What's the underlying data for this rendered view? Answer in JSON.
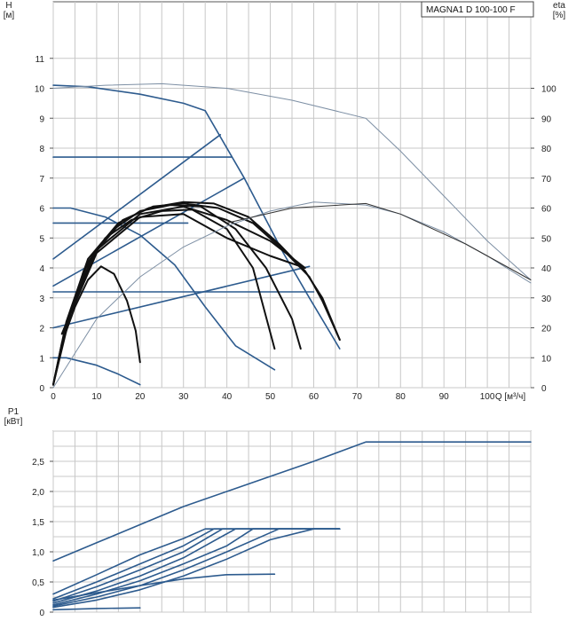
{
  "model_label": "MAGNA1 D 100-100 F",
  "colors": {
    "blue": "#2d5b8e",
    "black": "#111111",
    "eta": "#7d8fa4",
    "eta_black": "#333333",
    "grid": "#c8c8c8"
  },
  "chart_data": [
    {
      "type": "line",
      "title": "",
      "xlabel": "Q [м³/ч]",
      "ylabel": "H\n[м]",
      "y2label": "eta\n[%]",
      "xlim": [
        0,
        110
      ],
      "ylim": [
        0,
        12
      ],
      "y2lim": [
        0,
        120
      ],
      "grid": true,
      "x_ticks": [
        "0",
        "10",
        "20",
        "30",
        "40",
        "50",
        "60",
        "70",
        "80",
        "90",
        "100"
      ],
      "y_ticks": [
        "0",
        "1",
        "2",
        "3",
        "4",
        "5",
        "6",
        "7",
        "8",
        "9",
        "10",
        "11"
      ],
      "y2_ticks": [
        "0",
        "10",
        "20",
        "30",
        "40",
        "50",
        "60",
        "70",
        "80",
        "90",
        "100"
      ],
      "series": [
        {
          "color": "blue",
          "axis": "left",
          "points": [
            [
              0,
              10.1
            ],
            [
              8,
              10.05
            ],
            [
              20,
              9.8
            ],
            [
              30,
              9.5
            ],
            [
              35,
              9.25
            ]
          ]
        },
        {
          "color": "blue",
          "axis": "left",
          "points": [
            [
              35,
              9.25
            ],
            [
              44,
              7
            ],
            [
              53,
              4.5
            ],
            [
              59,
              3
            ],
            [
              66,
              1.3
            ]
          ]
        },
        {
          "color": "blue",
          "axis": "left",
          "points": [
            [
              0,
              7.7
            ],
            [
              41,
              7.7
            ]
          ]
        },
        {
          "color": "blue",
          "axis": "left",
          "points": [
            [
              0,
              5.5
            ],
            [
              31,
              5.5
            ]
          ]
        },
        {
          "color": "blue",
          "axis": "left",
          "points": [
            [
              0,
              3.2
            ],
            [
              60,
              3.2
            ]
          ]
        },
        {
          "color": "blue",
          "axis": "left",
          "points": [
            [
              0,
              4.3
            ],
            [
              38.5,
              8.45
            ]
          ]
        },
        {
          "color": "blue",
          "axis": "left",
          "points": [
            [
              0,
              3.4
            ],
            [
              44,
              7
            ]
          ]
        },
        {
          "color": "blue",
          "axis": "left",
          "points": [
            [
              0,
              2.0
            ],
            [
              59,
              4.05
            ]
          ]
        },
        {
          "color": "blue",
          "axis": "left",
          "points": [
            [
              0,
              6.0
            ],
            [
              4,
              6.0
            ],
            [
              12,
              5.7
            ],
            [
              20,
              5.1
            ],
            [
              28,
              4.1
            ],
            [
              35,
              2.7
            ],
            [
              42,
              1.4
            ],
            [
              51,
              0.6
            ]
          ]
        },
        {
          "color": "blue",
          "axis": "left",
          "points": [
            [
              0,
              1.0
            ],
            [
              3,
              1.0
            ],
            [
              10,
              0.75
            ],
            [
              15,
              0.45
            ],
            [
              20,
              0.1
            ]
          ]
        },
        {
          "color": "black",
          "axis": "left",
          "points": [
            [
              0,
              0.1
            ],
            [
              2,
              1.5
            ],
            [
              5,
              2.7
            ],
            [
              8,
              3.6
            ],
            [
              11,
              4.05
            ],
            [
              14,
              3.8
            ],
            [
              17,
              2.9
            ],
            [
              19,
              1.9
            ],
            [
              20,
              0.85
            ]
          ]
        },
        {
          "color": "black",
          "axis": "left",
          "points": [
            [
              0,
              0.1
            ],
            [
              3,
              2.0
            ],
            [
              7,
              3.9
            ],
            [
              12,
              5.0
            ],
            [
              18,
              5.6
            ],
            [
              25,
              5.9
            ],
            [
              32,
              5.95
            ],
            [
              40,
              5.3
            ],
            [
              46,
              4.0
            ],
            [
              51,
              1.3
            ]
          ]
        },
        {
          "color": "black",
          "axis": "left",
          "points": [
            [
              0,
              0.1
            ],
            [
              3,
              2.1
            ],
            [
              8,
              4.2
            ],
            [
              14,
              5.3
            ],
            [
              20,
              5.9
            ],
            [
              27,
              6.1
            ],
            [
              34,
              6.05
            ],
            [
              42,
              5.3
            ],
            [
              49,
              4.0
            ],
            [
              55,
              2.3
            ],
            [
              57,
              1.3
            ]
          ]
        },
        {
          "color": "black",
          "axis": "left",
          "points": [
            [
              0,
              0.1
            ],
            [
              3,
              2.2
            ],
            [
              8,
              4.3
            ],
            [
              15,
              5.5
            ],
            [
              22,
              6.0
            ],
            [
              30,
              6.2
            ],
            [
              37,
              6.15
            ],
            [
              45,
              5.7
            ],
            [
              52,
              4.8
            ],
            [
              58,
              3.9
            ],
            [
              62,
              3.0
            ],
            [
              66,
              1.6
            ]
          ]
        },
        {
          "color": "black",
          "axis": "left",
          "points": [
            [
              0,
              0.1
            ],
            [
              4,
              2.5
            ],
            [
              9,
              4.4
            ],
            [
              16,
              5.6
            ],
            [
              23,
              6.05
            ],
            [
              30,
              6.15
            ],
            [
              38,
              6.0
            ],
            [
              46,
              5.5
            ],
            [
              53,
              4.6
            ],
            [
              59,
              3.7
            ],
            [
              62,
              2.9
            ],
            [
              66,
              1.6
            ]
          ]
        },
        {
          "color": "black",
          "axis": "left",
          "points": [
            [
              2,
              1.8
            ],
            [
              10,
              4.5
            ],
            [
              20,
              5.7
            ],
            [
              30,
              5.8
            ],
            [
              40,
              5.0
            ],
            [
              50,
              4.4
            ],
            [
              58,
              4.0
            ]
          ]
        },
        {
          "color": "black",
          "axis": "left",
          "points": [
            [
              2,
              1.8
            ],
            [
              10,
              4.6
            ],
            [
              20,
              5.8
            ],
            [
              30,
              6.05
            ],
            [
              40,
              5.6
            ],
            [
              50,
              4.9
            ],
            [
              58,
              4.0
            ]
          ]
        },
        {
          "color": "eta",
          "axis": "right",
          "points": [
            [
              0,
              100
            ],
            [
              12,
              101
            ],
            [
              25,
              101.5
            ],
            [
              40,
              100
            ],
            [
              55,
              96
            ],
            [
              72,
              90
            ],
            [
              80,
              79
            ],
            [
              90,
              64
            ],
            [
              100,
              49
            ],
            [
              110,
              36
            ]
          ]
        },
        {
          "color": "eta",
          "axis": "right",
          "points": [
            [
              0,
              0
            ],
            [
              10,
              23
            ],
            [
              20,
              37
            ],
            [
              30,
              47
            ],
            [
              40,
              54
            ],
            [
              50,
              59
            ],
            [
              60,
              62
            ],
            [
              72,
              61
            ],
            [
              80,
              58
            ],
            [
              90,
              52
            ],
            [
              100,
              44
            ],
            [
              110,
              35
            ]
          ]
        },
        {
          "color": "eta_black",
          "axis": "right",
          "points": [
            [
              40,
              55
            ],
            [
              55,
              60
            ],
            [
              72,
              61.5
            ],
            [
              80,
              58
            ],
            [
              95,
              48
            ],
            [
              110,
              36
            ]
          ]
        }
      ]
    },
    {
      "type": "line",
      "title": "",
      "xlabel": "",
      "ylabel": "P1\n[кВт]",
      "xlim": [
        0,
        110
      ],
      "ylim": [
        0,
        3.0
      ],
      "grid": true,
      "y_ticks": [
        "0",
        "0,5",
        "1,0",
        "1,5",
        "2,0",
        "2,5"
      ],
      "series": [
        {
          "color": "blue",
          "axis": "left",
          "points": [
            [
              0,
              0.85
            ],
            [
              10,
              1.15
            ],
            [
              20,
              1.45
            ],
            [
              30,
              1.75
            ],
            [
              40,
              2.0
            ],
            [
              50,
              2.25
            ],
            [
              60,
              2.5
            ],
            [
              72,
              2.82
            ],
            [
              110,
              2.82
            ]
          ]
        },
        {
          "color": "blue",
          "axis": "left",
          "points": [
            [
              0,
              0.3
            ],
            [
              10,
              0.62
            ],
            [
              20,
              0.95
            ],
            [
              30,
              1.22
            ],
            [
              35,
              1.38
            ],
            [
              66,
              1.38
            ]
          ]
        },
        {
          "color": "blue",
          "axis": "left",
          "points": [
            [
              0,
              0.22
            ],
            [
              10,
              0.5
            ],
            [
              20,
              0.8
            ],
            [
              30,
              1.1
            ],
            [
              37,
              1.38
            ],
            [
              66,
              1.38
            ]
          ]
        },
        {
          "color": "blue",
          "axis": "left",
          "points": [
            [
              0,
              0.18
            ],
            [
              10,
              0.42
            ],
            [
              20,
              0.7
            ],
            [
              30,
              1.0
            ],
            [
              39,
              1.38
            ],
            [
              66,
              1.38
            ]
          ]
        },
        {
          "color": "blue",
          "axis": "left",
          "points": [
            [
              0,
              0.15
            ],
            [
              10,
              0.35
            ],
            [
              20,
              0.6
            ],
            [
              30,
              0.9
            ],
            [
              42,
              1.38
            ],
            [
              66,
              1.38
            ]
          ]
        },
        {
          "color": "blue",
          "axis": "left",
          "points": [
            [
              0,
              0.12
            ],
            [
              10,
              0.3
            ],
            [
              20,
              0.52
            ],
            [
              30,
              0.8
            ],
            [
              40,
              1.1
            ],
            [
              46,
              1.38
            ],
            [
              66,
              1.38
            ]
          ]
        },
        {
          "color": "blue",
          "axis": "left",
          "points": [
            [
              0,
              0.1
            ],
            [
              10,
              0.25
            ],
            [
              20,
              0.44
            ],
            [
              30,
              0.7
            ],
            [
              40,
              1.0
            ],
            [
              52,
              1.38
            ],
            [
              66,
              1.38
            ]
          ]
        },
        {
          "color": "blue",
          "axis": "left",
          "points": [
            [
              0,
              0.08
            ],
            [
              10,
              0.2
            ],
            [
              20,
              0.37
            ],
            [
              30,
              0.6
            ],
            [
              40,
              0.88
            ],
            [
              50,
              1.2
            ],
            [
              60,
              1.38
            ],
            [
              66,
              1.38
            ]
          ]
        },
        {
          "color": "blue",
          "axis": "left",
          "points": [
            [
              0,
              0.2
            ],
            [
              10,
              0.32
            ],
            [
              20,
              0.44
            ],
            [
              30,
              0.55
            ],
            [
              40,
              0.62
            ],
            [
              51,
              0.63
            ]
          ]
        },
        {
          "color": "blue",
          "axis": "left",
          "points": [
            [
              0,
              0.04
            ],
            [
              10,
              0.06
            ],
            [
              20,
              0.07
            ]
          ]
        }
      ]
    }
  ]
}
